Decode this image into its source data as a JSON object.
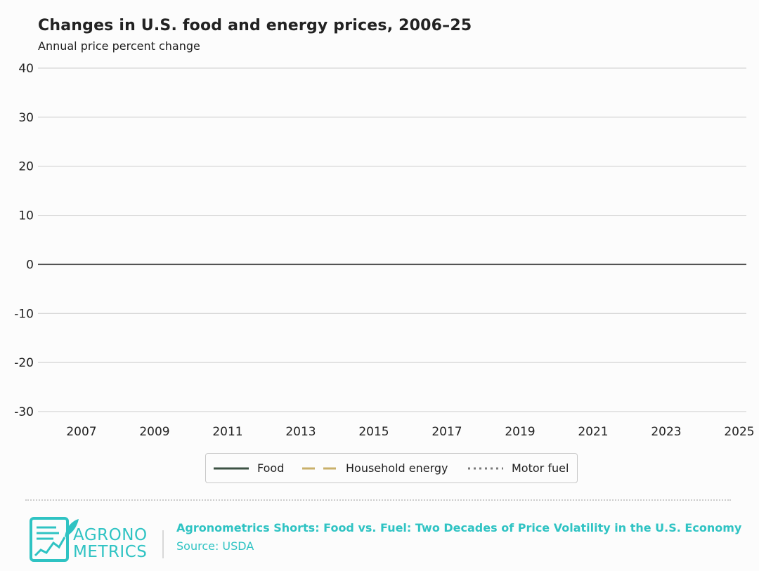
{
  "header": {
    "title": "Changes in U.S. food and energy prices, 2006–25",
    "subtitle": "Annual price percent change"
  },
  "chart_data": {
    "type": "line",
    "title": "Changes in U.S. food and energy prices, 2006–25",
    "ylabel": "Annual price percent change",
    "xlabel": "",
    "xlim": [
      2006,
      2025
    ],
    "ylim": [
      -30,
      40
    ],
    "x_ticks": [
      "2007",
      "2009",
      "2011",
      "2013",
      "2015",
      "2017",
      "2019",
      "2021",
      "2023",
      "2025"
    ],
    "y_ticks": [
      "40",
      "30",
      "20",
      "10",
      "0",
      "-10",
      "-20",
      "-30"
    ],
    "grid": true,
    "legend_position": "bottom-center",
    "series": [
      {
        "name": "Food",
        "color": "#3d5244",
        "style": "solid",
        "values": []
      },
      {
        "name": "Household energy",
        "color": "#c9b06a",
        "style": "dashed",
        "values": []
      },
      {
        "name": "Motor fuel",
        "color": "#7a7a7a",
        "style": "dotted",
        "values": []
      }
    ]
  },
  "legend": {
    "items": [
      {
        "label": "Food"
      },
      {
        "label": "Household energy"
      },
      {
        "label": "Motor fuel"
      }
    ]
  },
  "footer": {
    "logo_line1": "AGRONO",
    "logo_line2": "METRICS",
    "title": "Agronometrics Shorts: Food vs. Fuel: Two Decades of Price Volatility in the U.S. Economy",
    "source": "Source: USDA",
    "accent_color": "#2fc3c3"
  }
}
